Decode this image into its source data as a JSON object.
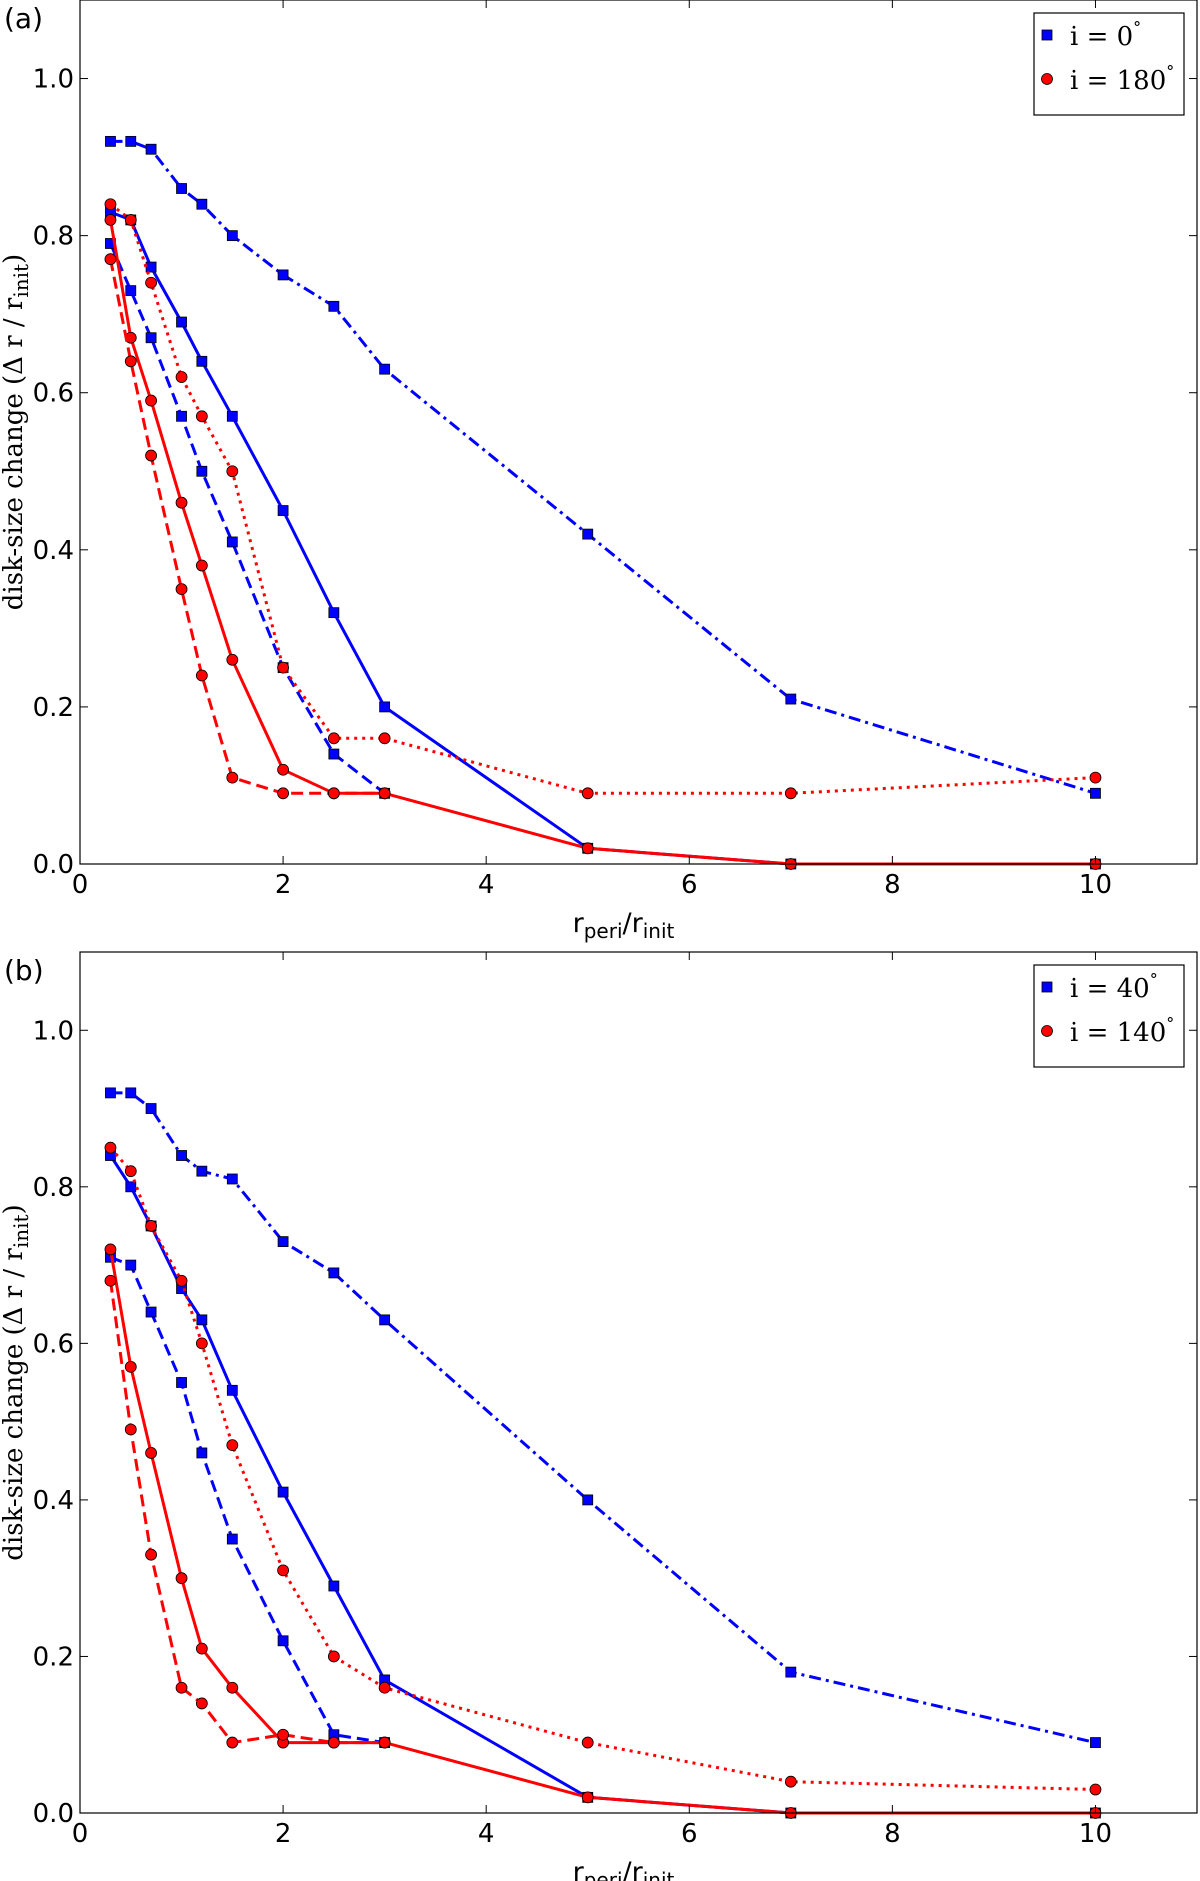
{
  "chart_data": [
    {
      "type": "line",
      "panel_label": "(a)",
      "xlabel_main": "r",
      "xlabel_sub": "peri",
      "xlabel_sep": "/r",
      "xlabel_sub2": "init",
      "ylabel": "disk-size change (Δ r / r",
      "ylabel_sub": "init",
      "ylabel_end": ")",
      "xlim": [
        0,
        11
      ],
      "ylim": [
        0,
        1.1
      ],
      "xticks": [
        0,
        2,
        4,
        6,
        8,
        10
      ],
      "yticks": [
        0.0,
        0.2,
        0.4,
        0.6,
        0.8,
        1.0
      ],
      "xtick_labels": [
        "0",
        "2",
        "4",
        "6",
        "8",
        "10"
      ],
      "ytick_labels": [
        "0.0",
        "0.2",
        "0.4",
        "0.6",
        "0.8",
        "1.0"
      ],
      "legend_position": "top-right",
      "legend": [
        {
          "label": "i = 0",
          "deg": "°",
          "color": "#0000ff",
          "marker": "square"
        },
        {
          "label": "i = 180",
          "deg": "°",
          "color": "#ff0000",
          "marker": "circle"
        }
      ],
      "series": [
        {
          "group": 0,
          "color": "#0000ff",
          "marker": "square",
          "linestyle": "dashdot",
          "x": [
            0.3,
            0.5,
            0.7,
            1.0,
            1.2,
            1.5,
            2.0,
            2.5,
            3.0,
            5.0,
            7.0,
            10.0
          ],
          "y": [
            0.92,
            0.92,
            0.91,
            0.86,
            0.84,
            0.8,
            0.75,
            0.71,
            0.63,
            0.42,
            0.21,
            0.09
          ]
        },
        {
          "group": 0,
          "color": "#0000ff",
          "marker": "square",
          "linestyle": "solid",
          "x": [
            0.3,
            0.5,
            0.7,
            1.0,
            1.2,
            1.5,
            2.0,
            2.5,
            3.0,
            5.0,
            7.0,
            10.0
          ],
          "y": [
            0.83,
            0.82,
            0.76,
            0.69,
            0.64,
            0.57,
            0.45,
            0.32,
            0.2,
            0.02,
            0.0,
            0.0
          ]
        },
        {
          "group": 0,
          "color": "#0000ff",
          "marker": "square",
          "linestyle": "dashed",
          "x": [
            0.3,
            0.5,
            0.7,
            1.0,
            1.2,
            1.5,
            2.0,
            2.5,
            3.0
          ],
          "y": [
            0.79,
            0.73,
            0.67,
            0.57,
            0.5,
            0.41,
            0.25,
            0.14,
            0.09
          ]
        },
        {
          "group": 1,
          "color": "#ff0000",
          "marker": "circle",
          "linestyle": "dotted",
          "x": [
            0.3,
            0.5,
            0.7,
            1.0,
            1.2,
            1.5,
            2.0,
            2.5,
            3.0,
            5.0,
            7.0,
            10.0
          ],
          "y": [
            0.84,
            0.82,
            0.74,
            0.62,
            0.57,
            0.5,
            0.25,
            0.16,
            0.16,
            0.09,
            0.09,
            0.11
          ]
        },
        {
          "group": 1,
          "color": "#ff0000",
          "marker": "circle",
          "linestyle": "solid",
          "x": [
            0.3,
            0.5,
            0.7,
            1.0,
            1.2,
            1.5,
            2.0,
            2.5,
            3.0,
            5.0,
            7.0,
            10.0
          ],
          "y": [
            0.82,
            0.67,
            0.59,
            0.46,
            0.38,
            0.26,
            0.12,
            0.09,
            0.09,
            0.02,
            0.0,
            0.0
          ]
        },
        {
          "group": 1,
          "color": "#ff0000",
          "marker": "circle",
          "linestyle": "dashed",
          "x": [
            0.3,
            0.5,
            0.7,
            1.0,
            1.2,
            1.5,
            2.0,
            2.5,
            3.0
          ],
          "y": [
            0.77,
            0.64,
            0.52,
            0.35,
            0.24,
            0.11,
            0.09,
            0.09,
            0.09
          ]
        }
      ]
    },
    {
      "type": "line",
      "panel_label": "(b)",
      "xlabel_main": "r",
      "xlabel_sub": "peri",
      "xlabel_sep": "/r",
      "xlabel_sub2": "init",
      "ylabel": "disk-size change (Δ r / r",
      "ylabel_sub": "init",
      "ylabel_end": ")",
      "xlim": [
        0,
        11
      ],
      "ylim": [
        0,
        1.1
      ],
      "xticks": [
        0,
        2,
        4,
        6,
        8,
        10
      ],
      "yticks": [
        0.0,
        0.2,
        0.4,
        0.6,
        0.8,
        1.0
      ],
      "xtick_labels": [
        "0",
        "2",
        "4",
        "6",
        "8",
        "10"
      ],
      "ytick_labels": [
        "0.0",
        "0.2",
        "0.4",
        "0.6",
        "0.8",
        "1.0"
      ],
      "legend_position": "top-right",
      "legend": [
        {
          "label": "i = 40",
          "deg": "°",
          "color": "#0000ff",
          "marker": "square"
        },
        {
          "label": "i = 140",
          "deg": "°",
          "color": "#ff0000",
          "marker": "circle"
        }
      ],
      "series": [
        {
          "group": 0,
          "color": "#0000ff",
          "marker": "square",
          "linestyle": "dashdot",
          "x": [
            0.3,
            0.5,
            0.7,
            1.0,
            1.2,
            1.5,
            2.0,
            2.5,
            3.0,
            5.0,
            7.0,
            10.0
          ],
          "y": [
            0.92,
            0.92,
            0.9,
            0.84,
            0.82,
            0.81,
            0.73,
            0.69,
            0.63,
            0.4,
            0.18,
            0.09
          ]
        },
        {
          "group": 0,
          "color": "#0000ff",
          "marker": "square",
          "linestyle": "solid",
          "x": [
            0.3,
            0.5,
            0.7,
            1.0,
            1.2,
            1.5,
            2.0,
            2.5,
            3.0,
            5.0,
            7.0,
            10.0
          ],
          "y": [
            0.84,
            0.8,
            0.75,
            0.67,
            0.63,
            0.54,
            0.41,
            0.29,
            0.17,
            0.02,
            0.0,
            0.0
          ]
        },
        {
          "group": 0,
          "color": "#0000ff",
          "marker": "square",
          "linestyle": "dashed",
          "x": [
            0.3,
            0.5,
            0.7,
            1.0,
            1.2,
            1.5,
            2.0,
            2.5,
            3.0
          ],
          "y": [
            0.71,
            0.7,
            0.64,
            0.55,
            0.46,
            0.35,
            0.22,
            0.1,
            0.09
          ]
        },
        {
          "group": 1,
          "color": "#ff0000",
          "marker": "circle",
          "linestyle": "dotted",
          "x": [
            0.3,
            0.5,
            0.7,
            1.0,
            1.2,
            1.5,
            2.0,
            2.5,
            3.0,
            5.0,
            7.0,
            10.0
          ],
          "y": [
            0.85,
            0.82,
            0.75,
            0.68,
            0.6,
            0.47,
            0.31,
            0.2,
            0.16,
            0.09,
            0.04,
            0.03
          ]
        },
        {
          "group": 1,
          "color": "#ff0000",
          "marker": "circle",
          "linestyle": "solid",
          "x": [
            0.3,
            0.5,
            0.7,
            1.0,
            1.2,
            1.5,
            2.0,
            2.5,
            3.0,
            5.0,
            7.0,
            10.0
          ],
          "y": [
            0.72,
            0.57,
            0.46,
            0.3,
            0.21,
            0.16,
            0.09,
            0.09,
            0.09,
            0.02,
            0.0,
            0.0
          ]
        },
        {
          "group": 1,
          "color": "#ff0000",
          "marker": "circle",
          "linestyle": "dashed",
          "x": [
            0.3,
            0.5,
            0.7,
            1.0,
            1.2,
            1.5,
            2.0,
            2.5,
            3.0
          ],
          "y": [
            0.68,
            0.49,
            0.33,
            0.16,
            0.14,
            0.09,
            0.1,
            0.09,
            0.09
          ]
        }
      ]
    }
  ]
}
